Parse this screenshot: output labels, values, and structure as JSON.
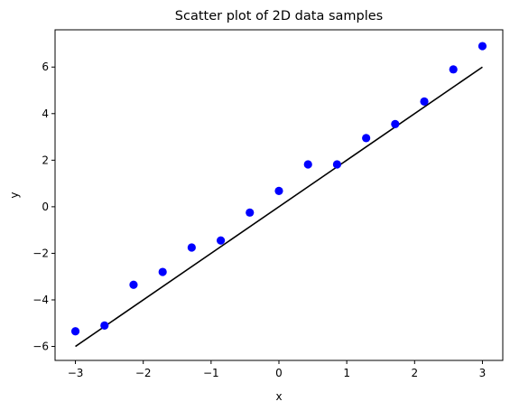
{
  "chart_data": {
    "type": "scatter",
    "title": "Scatter plot of 2D data samples",
    "xlabel": "x",
    "ylabel": "y",
    "xlim": [
      -3.3,
      3.3
    ],
    "ylim": [
      -6.6,
      7.6
    ],
    "xticks": [
      -3,
      -2,
      -1,
      0,
      1,
      2,
      3
    ],
    "xtick_labels": [
      "−3",
      "−2",
      "−1",
      "0",
      "1",
      "2",
      "3"
    ],
    "yticks": [
      -6,
      -4,
      -2,
      0,
      2,
      4,
      6
    ],
    "ytick_labels": [
      "−6",
      "−4",
      "−2",
      "0",
      "2",
      "4",
      "6"
    ],
    "grid": false,
    "series": [
      {
        "type": "scatter",
        "color": "#0000ff",
        "points": [
          [
            -3.0,
            -5.35
          ],
          [
            -2.571,
            -5.1
          ],
          [
            -2.143,
            -3.35
          ],
          [
            -1.714,
            -2.8
          ],
          [
            -1.286,
            -1.75
          ],
          [
            -0.857,
            -1.45
          ],
          [
            -0.429,
            -0.25
          ],
          [
            0.0,
            0.68
          ],
          [
            0.429,
            1.82
          ],
          [
            0.857,
            1.82
          ],
          [
            1.286,
            2.95
          ],
          [
            1.714,
            3.55
          ],
          [
            2.143,
            4.52
          ],
          [
            2.571,
            5.9
          ],
          [
            3.0,
            6.9
          ]
        ]
      },
      {
        "type": "line",
        "color": "#000000",
        "points": [
          [
            -3.0,
            -6.0
          ],
          [
            3.0,
            6.0
          ]
        ]
      }
    ]
  }
}
